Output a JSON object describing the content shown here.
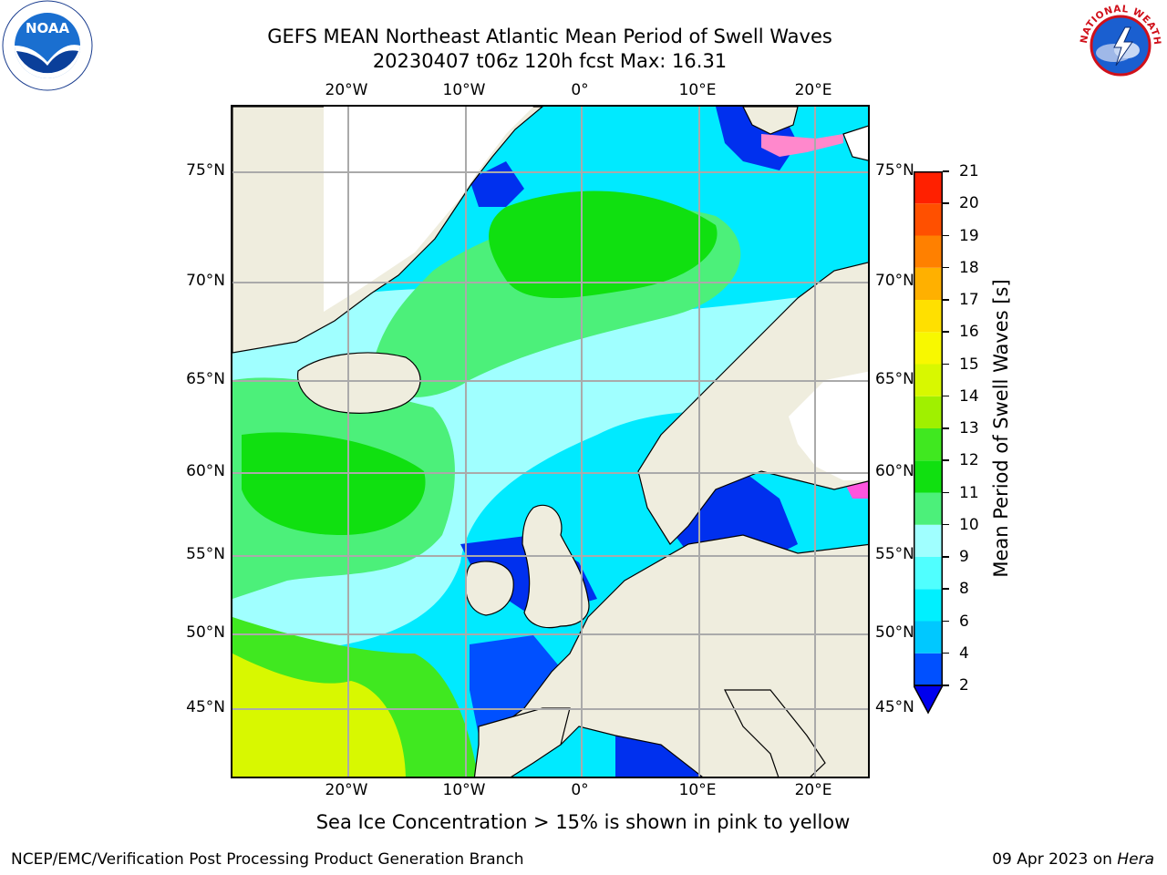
{
  "title": {
    "line1": "GEFS MEAN Northeast Atlantic Mean Period of Swell Waves",
    "line2": "20230407 t06z 120h fcst   Max: 16.31"
  },
  "logos": {
    "noaa_text": "NOAA",
    "nws_text": "NATIONAL WEATHER SERVICE"
  },
  "map": {
    "lon_labels": [
      "20°W",
      "10°W",
      "0°",
      "10°E",
      "20°E"
    ],
    "lat_labels": [
      "75°N",
      "70°N",
      "65°N",
      "60°N",
      "55°N",
      "50°N",
      "45°N"
    ],
    "lon_values": [
      -20,
      -10,
      0,
      10,
      20
    ],
    "lat_values": [
      75,
      70,
      65,
      60,
      55,
      50,
      45
    ],
    "extent": {
      "lon_min": -30,
      "lon_max": 25,
      "lat_min": 41,
      "lat_max": 78
    },
    "grid": true,
    "colors": {
      "land": "#efedde",
      "ice_free_land": "#ffffff",
      "coast": "#000000"
    }
  },
  "colorbar": {
    "label": "Mean Period of Swell Waves [s]",
    "ticks": [
      "2",
      "4",
      "6",
      "8",
      "9",
      "10",
      "11",
      "12",
      "13",
      "14",
      "15",
      "16",
      "17",
      "18",
      "19",
      "20",
      "21"
    ],
    "colors": [
      "#0050ff",
      "#00c8ff",
      "#00f0ff",
      "#50ffff",
      "#a0ffff",
      "#4cf07a",
      "#10e010",
      "#40e820",
      "#a0f000",
      "#d8f800",
      "#f8f800",
      "#ffe000",
      "#ffb000",
      "#ff8000",
      "#ff5000",
      "#ff2000"
    ],
    "extend_color": "#0000ee"
  },
  "note": "Sea Ice Concentration > 15% is shown in pink to yellow",
  "footer": {
    "left": "NCEP/EMC/Verification Post Processing Product Generation Branch",
    "date": "09 Apr 2023 on",
    "machine": "Hera"
  }
}
